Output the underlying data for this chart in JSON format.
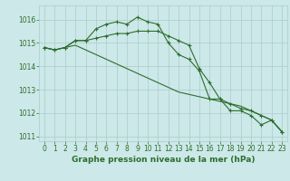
{
  "x": [
    0,
    1,
    2,
    3,
    4,
    5,
    6,
    7,
    8,
    9,
    10,
    11,
    12,
    13,
    14,
    15,
    16,
    17,
    18,
    19,
    20,
    21,
    22,
    23
  ],
  "line1": [
    1014.8,
    1014.7,
    1014.8,
    1015.1,
    1015.1,
    1015.6,
    1015.8,
    1015.9,
    1015.8,
    1016.1,
    1015.9,
    1015.8,
    1015.0,
    1014.5,
    1014.3,
    1013.8,
    1012.6,
    1012.6,
    1012.1,
    1012.1,
    1011.9,
    1011.5,
    1011.7,
    1011.2
  ],
  "line2": [
    1014.8,
    1014.7,
    1014.8,
    1015.1,
    1015.1,
    1015.2,
    1015.3,
    1015.4,
    1015.4,
    1015.5,
    1015.5,
    1015.5,
    1015.3,
    1015.1,
    1014.9,
    1013.9,
    1013.3,
    1012.6,
    1012.4,
    1012.2,
    1012.1,
    1011.9,
    1011.7,
    1011.2
  ],
  "line3": [
    1014.8,
    1014.7,
    1014.8,
    1014.9,
    1014.7,
    1014.5,
    1014.3,
    1014.1,
    1013.9,
    1013.7,
    1013.5,
    1013.3,
    1013.1,
    1012.9,
    1012.8,
    1012.7,
    1012.6,
    1012.5,
    1012.4,
    1012.3,
    1012.1,
    1011.9,
    1011.7,
    1011.2
  ],
  "xlabel": "Graphe pression niveau de la mer (hPa)",
  "ylim": [
    1010.8,
    1016.6
  ],
  "yticks": [
    1011,
    1012,
    1013,
    1014,
    1015,
    1016
  ],
  "xticks": [
    0,
    1,
    2,
    3,
    4,
    5,
    6,
    7,
    8,
    9,
    10,
    11,
    12,
    13,
    14,
    15,
    16,
    17,
    18,
    19,
    20,
    21,
    22,
    23
  ],
  "line_color": "#2d6e2d",
  "bg_color": "#cce8e8",
  "grid_color": "#aacccc",
  "marker": "+",
  "linewidth": 0.8,
  "markersize": 3.5,
  "tick_fontsize": 5.5,
  "xlabel_fontsize": 6.5
}
